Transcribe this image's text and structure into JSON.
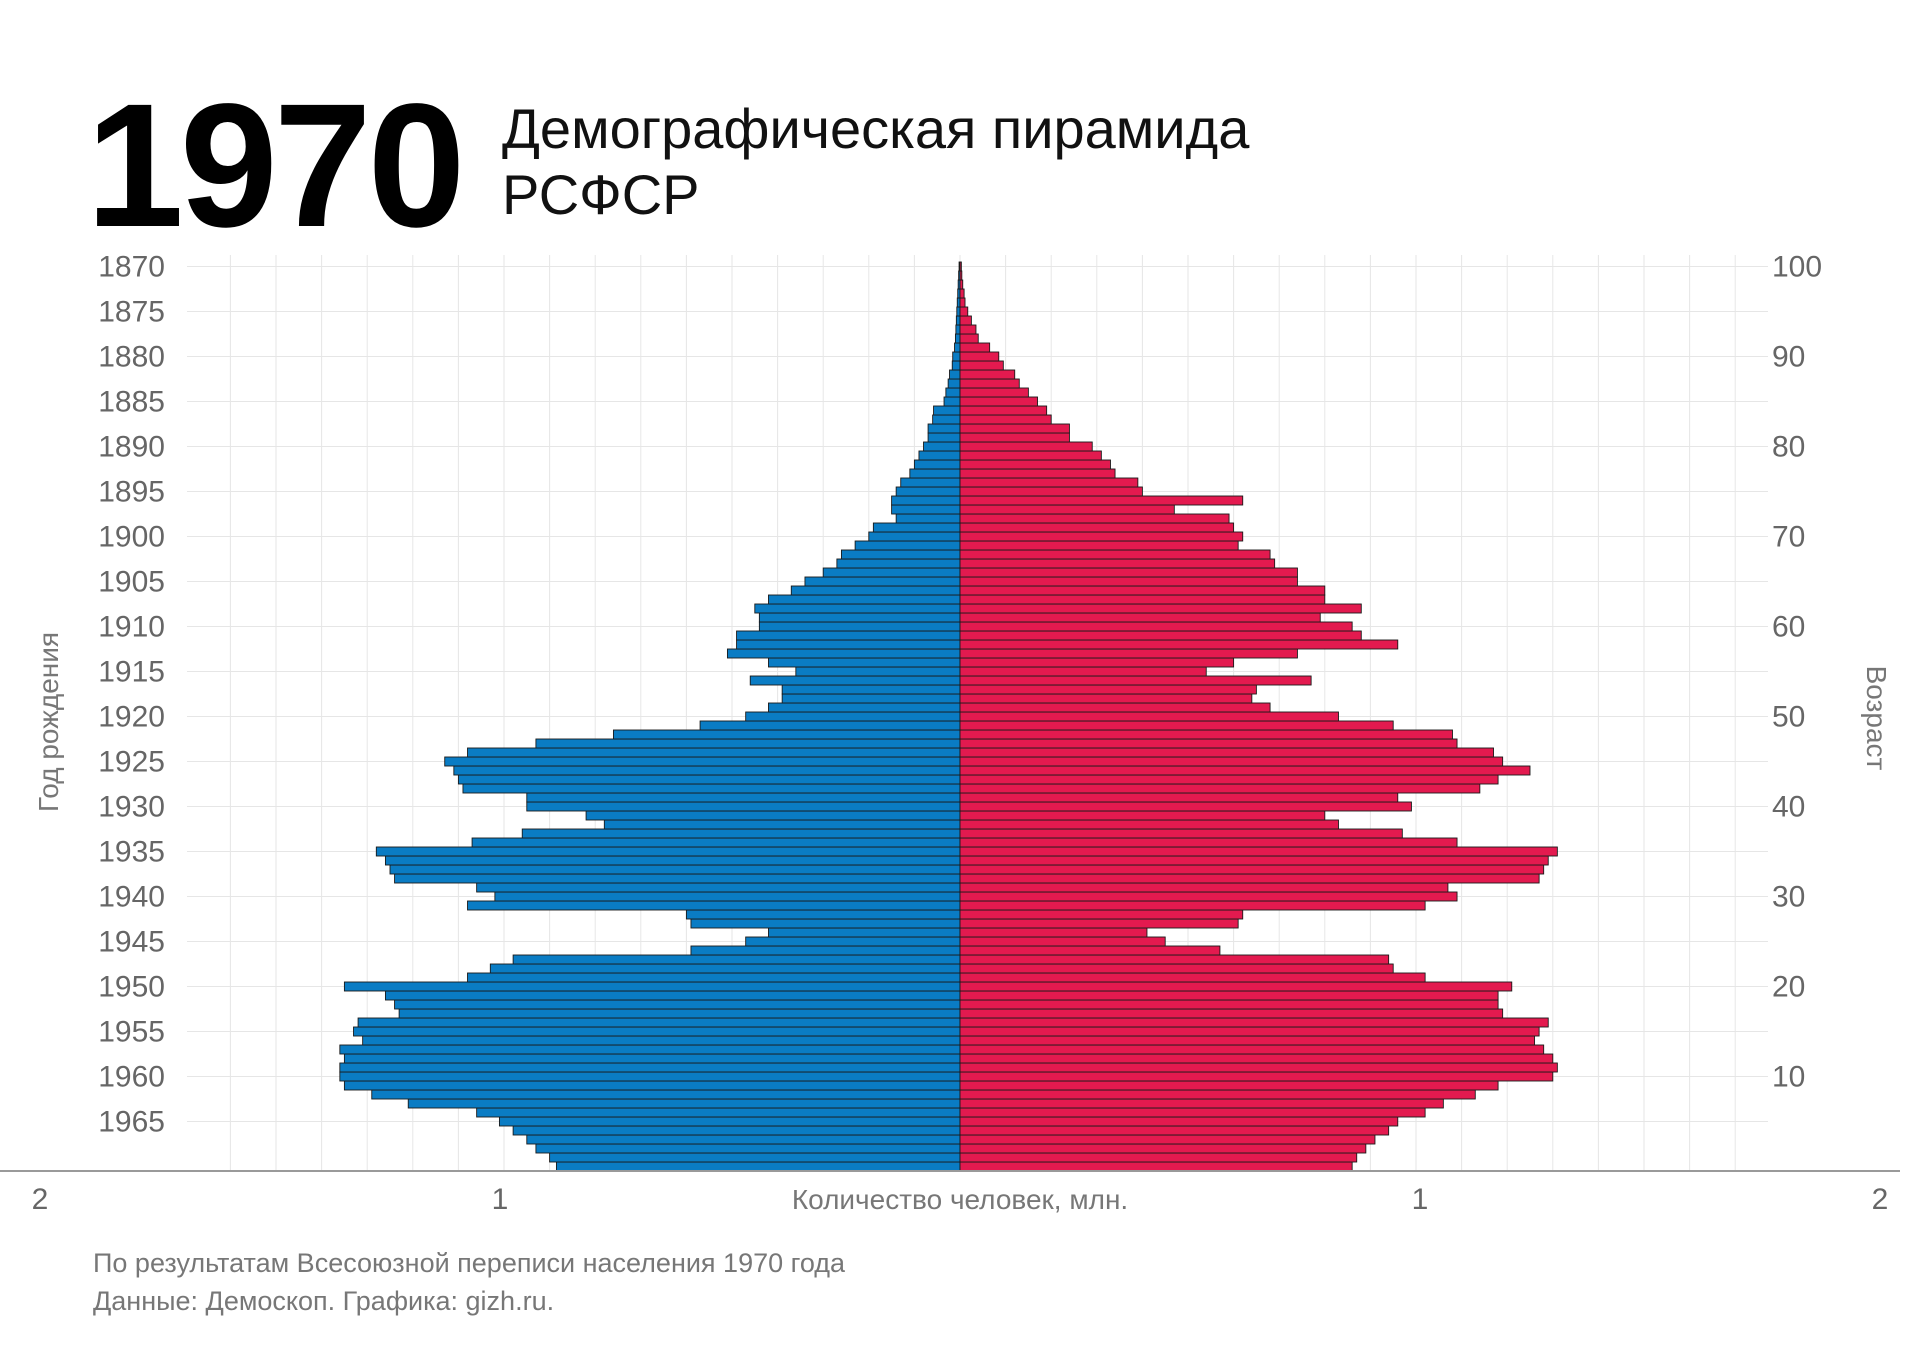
{
  "header": {
    "year": "1970",
    "title_line1": "Демографическая пирамида",
    "title_line2": "РСФСР"
  },
  "footer": {
    "source_line1": "По результатам Всесоюзной переписи населения 1970 года",
    "source_line2": "Данные: Демоскоп. Графика: gizh.ru."
  },
  "colors": {
    "male": "#0a7cc4",
    "female": "#e31a4f",
    "bar_edge": "#1a1a1a",
    "grid": "#e6e6e6"
  },
  "chart_data": {
    "type": "bar",
    "orientation": "horizontal-pyramid",
    "xlabel": "Количество человек, млн.",
    "ylabel_left": "Год рождения",
    "ylabel_right": "Возраст",
    "xlim": [
      -2,
      2
    ],
    "x_ticks": [
      {
        "value": -2,
        "label": "2"
      },
      {
        "value": -1,
        "label": "1"
      },
      {
        "value": 1,
        "label": "1"
      },
      {
        "value": 2,
        "label": "2"
      }
    ],
    "y_ticks_left": [
      "1870",
      "1875",
      "1880",
      "1885",
      "1890",
      "1895",
      "1900",
      "1905",
      "1910",
      "1915",
      "1920",
      "1925",
      "1930",
      "1935",
      "1940",
      "1945",
      "1950",
      "1955",
      "1960",
      "1965"
    ],
    "y_ticks_right": [
      "100",
      "90",
      "80",
      "70",
      "60",
      "50",
      "40",
      "30",
      "20",
      "10"
    ],
    "grid": true,
    "ages": [
      0,
      1,
      2,
      3,
      4,
      5,
      6,
      7,
      8,
      9,
      10,
      11,
      12,
      13,
      14,
      15,
      16,
      17,
      18,
      19,
      20,
      21,
      22,
      23,
      24,
      25,
      26,
      27,
      28,
      29,
      30,
      31,
      32,
      33,
      34,
      35,
      36,
      37,
      38,
      39,
      40,
      41,
      42,
      43,
      44,
      45,
      46,
      47,
      48,
      49,
      50,
      51,
      52,
      53,
      54,
      55,
      56,
      57,
      58,
      59,
      60,
      61,
      62,
      63,
      64,
      65,
      66,
      67,
      68,
      69,
      70,
      71,
      72,
      73,
      74,
      75,
      76,
      77,
      78,
      79,
      80,
      81,
      82,
      83,
      84,
      85,
      86,
      87,
      88,
      89,
      90,
      91,
      92,
      93,
      94,
      95,
      96,
      97,
      98,
      99,
      100
    ],
    "series": [
      {
        "name": "male",
        "values": [
          0.885,
          0.9,
          0.93,
          0.95,
          0.98,
          1.01,
          1.06,
          1.21,
          1.29,
          1.35,
          1.36,
          1.36,
          1.35,
          1.36,
          1.31,
          1.33,
          1.32,
          1.23,
          1.24,
          1.26,
          1.35,
          1.08,
          1.03,
          0.98,
          0.59,
          0.47,
          0.42,
          0.59,
          0.6,
          1.08,
          1.02,
          1.06,
          1.24,
          1.25,
          1.26,
          1.28,
          1.07,
          0.96,
          0.78,
          0.82,
          0.95,
          0.95,
          1.09,
          1.1,
          1.11,
          1.13,
          1.08,
          0.93,
          0.76,
          0.57,
          0.47,
          0.42,
          0.39,
          0.39,
          0.46,
          0.36,
          0.42,
          0.51,
          0.49,
          0.49,
          0.44,
          0.44,
          0.45,
          0.42,
          0.37,
          0.34,
          0.3,
          0.27,
          0.26,
          0.23,
          0.2,
          0.19,
          0.14,
          0.15,
          0.15,
          0.14,
          0.13,
          0.11,
          0.1,
          0.09,
          0.08,
          0.07,
          0.07,
          0.06,
          0.058,
          0.035,
          0.031,
          0.026,
          0.023,
          0.017,
          0.016,
          0.012,
          0.01,
          0.009,
          0.008,
          0.007,
          0.006,
          0.005,
          0.004,
          0.003,
          0.002
        ]
      },
      {
        "name": "female",
        "values": [
          0.86,
          0.87,
          0.89,
          0.91,
          0.94,
          0.96,
          1.02,
          1.06,
          1.13,
          1.18,
          1.3,
          1.31,
          1.3,
          1.28,
          1.26,
          1.27,
          1.29,
          1.19,
          1.18,
          1.18,
          1.21,
          1.02,
          0.95,
          0.94,
          0.57,
          0.45,
          0.41,
          0.61,
          0.62,
          1.02,
          1.09,
          1.07,
          1.27,
          1.28,
          1.29,
          1.31,
          1.09,
          0.97,
          0.83,
          0.8,
          0.99,
          0.96,
          1.14,
          1.18,
          1.25,
          1.19,
          1.17,
          1.09,
          1.08,
          0.95,
          0.83,
          0.68,
          0.64,
          0.65,
          0.77,
          0.54,
          0.6,
          0.74,
          0.96,
          0.88,
          0.86,
          0.79,
          0.88,
          0.8,
          0.8,
          0.74,
          0.74,
          0.69,
          0.68,
          0.61,
          0.62,
          0.6,
          0.59,
          0.47,
          0.62,
          0.4,
          0.39,
          0.34,
          0.33,
          0.31,
          0.29,
          0.24,
          0.24,
          0.2,
          0.19,
          0.17,
          0.15,
          0.13,
          0.12,
          0.095,
          0.085,
          0.065,
          0.04,
          0.035,
          0.025,
          0.017,
          0.011,
          0.009,
          0.006,
          0.004,
          0.003
        ]
      }
    ]
  }
}
